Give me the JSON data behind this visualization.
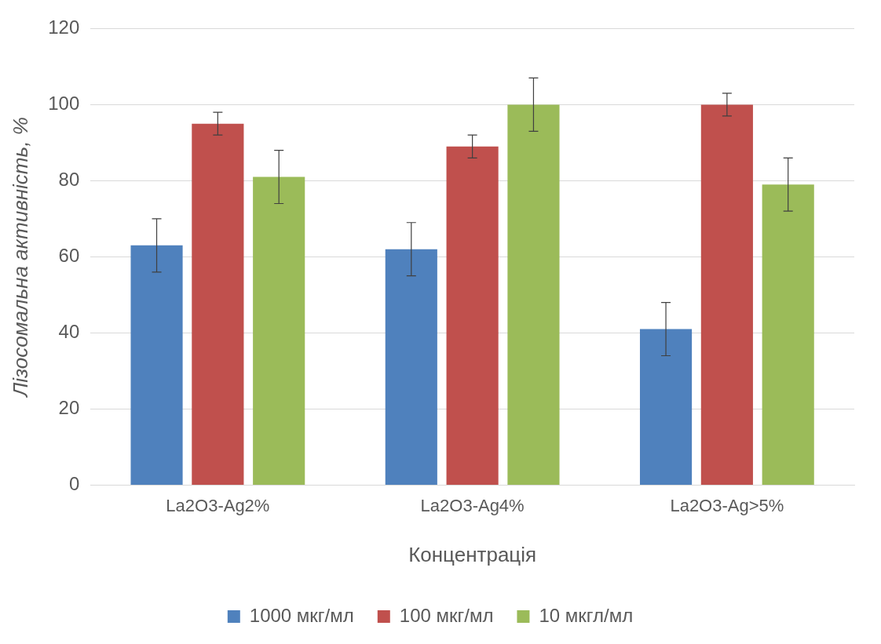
{
  "chart_data": {
    "type": "bar",
    "xlabel": "Концентрація",
    "ylabel": "Лізосомальна активність, %",
    "categories": [
      "La2O3-Ag2%",
      "La2O3-Ag4%",
      "La2O3-Ag>5%"
    ],
    "series": [
      {
        "name": "1000 мкг/мл",
        "color": "#4f81bd",
        "values": [
          63,
          62,
          41
        ],
        "errors": [
          7,
          7,
          7
        ]
      },
      {
        "name": "100 мкг/мл",
        "color": "#c0504d",
        "values": [
          95,
          89,
          100
        ],
        "errors": [
          3,
          3,
          3
        ]
      },
      {
        "name": "10 мкгл/мл",
        "color": "#9bbb59",
        "values": [
          81,
          100,
          79
        ],
        "errors": [
          7,
          7,
          7
        ]
      }
    ],
    "ylim": [
      0,
      120
    ],
    "yticks": [
      0,
      20,
      40,
      60,
      80,
      100,
      120
    ],
    "grid": "y",
    "legend": "bottom"
  }
}
